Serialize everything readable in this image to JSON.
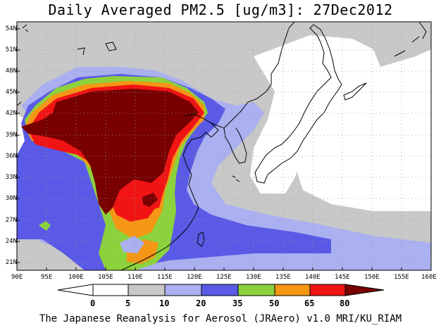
{
  "title": "Daily Averaged PM2.5 [ug/m3]: 27Dec2012",
  "footer": "The Japanese Reanalysis for Aerosol (JRAero) v1.0 MRI/KU_RIAM",
  "map": {
    "lon_range": [
      90,
      160
    ],
    "lat_range": [
      20,
      55
    ],
    "x_ticks": [
      "90E",
      "95E",
      "100E",
      "105E",
      "110E",
      "115E",
      "120E",
      "125E",
      "130E",
      "135E",
      "140E",
      "145E",
      "150E",
      "155E",
      "160E"
    ],
    "y_ticks": [
      "54N",
      "51N",
      "48N",
      "45N",
      "42N",
      "39N",
      "36N",
      "33N",
      "30N",
      "27N",
      "24N",
      "21N"
    ],
    "grid": true,
    "coastlines": true
  },
  "colorbar": {
    "labels": [
      "0",
      "5",
      "10",
      "20",
      "35",
      "50",
      "65",
      "80"
    ],
    "colors": [
      "#ffffff",
      "#ffffff",
      "#c8c8c8",
      "#aab0f0",
      "#5a5ae6",
      "#8cd23c",
      "#f59614",
      "#f01414",
      "#780000"
    ]
  }
}
